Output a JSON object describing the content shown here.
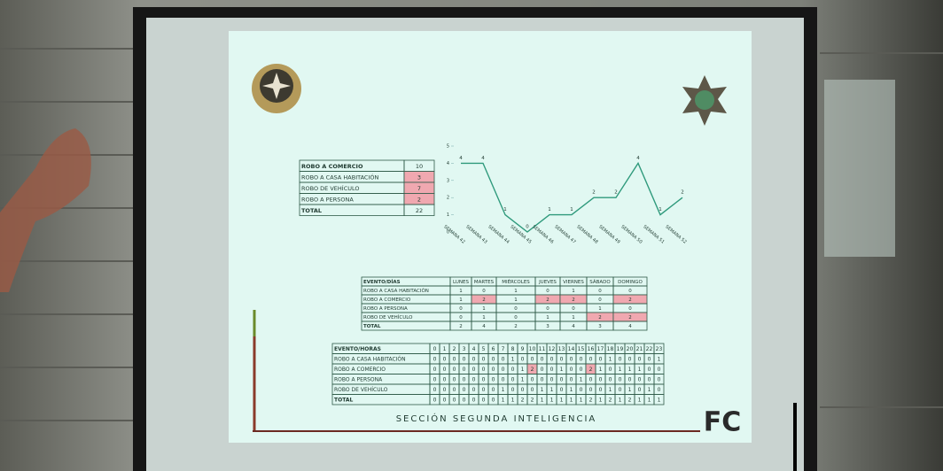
{
  "summary": {
    "rows": [
      [
        "ROBO A COMERCIO",
        10
      ],
      [
        "ROBO A CASA HABITACIÓN",
        3
      ],
      [
        "ROBO DE VEHÍCULO",
        7
      ],
      [
        "ROBO A PERSONA",
        2
      ],
      [
        "TOTAL",
        22
      ]
    ]
  },
  "chart_data": {
    "type": "line",
    "categories": [
      "SEMANA 42",
      "SEMANA 43",
      "SEMANA 44",
      "SEMANA 45",
      "SEMANA 46",
      "SEMANA 47",
      "SEMANA 48",
      "SEMANA 49",
      "SEMANA 50",
      "SEMANA 51",
      "SEMANA 52"
    ],
    "values": [
      4,
      4,
      1,
      0,
      1,
      1,
      2,
      2,
      4,
      1,
      2
    ],
    "color": "#2f9a7c",
    "ylim": [
      0,
      5
    ],
    "yticks": [
      0,
      1,
      2,
      3,
      4,
      5
    ]
  },
  "days_table": {
    "header": [
      "EVENTO/DÍAS",
      "LUNES",
      "MARTES",
      "MIÉRCOLES",
      "JUEVES",
      "VIERNES",
      "SÁBADO",
      "DOMINGO"
    ],
    "rows": [
      [
        "ROBO A CASA HABITACIÓN",
        1,
        0,
        1,
        0,
        1,
        0,
        0
      ],
      [
        "ROBO A COMERCIO",
        1,
        2,
        1,
        2,
        2,
        0,
        2
      ],
      [
        "ROBO A PERSONA",
        0,
        1,
        0,
        0,
        0,
        1,
        0
      ],
      [
        "ROBO DE VEHÍCULO",
        0,
        1,
        0,
        1,
        1,
        2,
        2
      ],
      [
        "TOTAL",
        2,
        4,
        2,
        3,
        4,
        3,
        4
      ]
    ]
  },
  "hours_table": {
    "header": [
      "EVENTO/HORAS",
      0,
      1,
      2,
      3,
      4,
      5,
      6,
      7,
      8,
      9,
      10,
      11,
      12,
      13,
      14,
      15,
      16,
      17,
      18,
      19,
      20,
      21,
      22,
      23
    ],
    "rows": [
      [
        "ROBO A CASA HABITACIÓN",
        0,
        0,
        0,
        0,
        0,
        0,
        0,
        0,
        1,
        0,
        0,
        0,
        0,
        0,
        0,
        0,
        0,
        0,
        1,
        0,
        0,
        0,
        0,
        1
      ],
      [
        "ROBO A COMERCIO",
        0,
        0,
        0,
        0,
        0,
        0,
        0,
        0,
        0,
        1,
        2,
        0,
        0,
        1,
        0,
        0,
        2,
        1,
        0,
        1,
        1,
        1,
        0,
        0
      ],
      [
        "ROBO A PERSONA",
        0,
        0,
        0,
        0,
        0,
        0,
        0,
        0,
        0,
        1,
        0,
        0,
        0,
        0,
        0,
        1,
        0,
        0,
        0,
        0,
        0,
        0,
        0,
        0
      ],
      [
        "ROBO DE VEHÍCULO",
        0,
        0,
        0,
        0,
        0,
        0,
        0,
        1,
        0,
        0,
        0,
        1,
        1,
        0,
        1,
        0,
        0,
        0,
        1,
        0,
        1,
        0,
        1,
        0
      ],
      [
        "TOTAL",
        0,
        0,
        0,
        0,
        0,
        0,
        0,
        1,
        1,
        2,
        2,
        1,
        1,
        1,
        1,
        1,
        2,
        1,
        2,
        1,
        2,
        1,
        1,
        1
      ]
    ]
  },
  "footer": {
    "section": "SECCIÓN SEGUNDA INTELIGENCIA",
    "logo": "FC"
  }
}
